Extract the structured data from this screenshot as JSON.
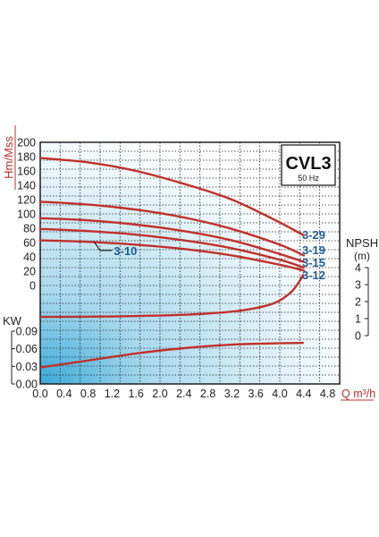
{
  "chart_data": {
    "type": "line",
    "title": "CVL3",
    "subtitle": "50 Hz",
    "xlabel": "Q m³/h",
    "head_axis_label": "Hm/Mss",
    "npsh_axis_label": "NPSH",
    "npsh_unit": "(m)",
    "power_axis_label": "KW",
    "x_ticks": [
      "0.0",
      "0.4",
      "0.8",
      "1.2",
      "1.6",
      "2.0",
      "2.4",
      "2.8",
      "3.2",
      "3.6",
      "4.0",
      "4.4",
      "4.8"
    ],
    "head_ticks": [
      "200",
      "180",
      "160",
      "140",
      "120",
      "100",
      "80",
      "60",
      "40",
      "20",
      "0"
    ],
    "npsh_ticks": [
      "4",
      "3",
      "2",
      "1",
      "0"
    ],
    "power_ticks": [
      "0.09",
      "0.06",
      "0.03",
      "0.00"
    ],
    "xlim": [
      0,
      5.0
    ],
    "head_ylim": [
      0,
      200
    ],
    "npsh_ylim": [
      0,
      4
    ],
    "power_ylim": [
      0,
      0.09
    ],
    "series": [
      {
        "name": "3-29",
        "x": [
          0,
          0.8,
          1.6,
          2.4,
          3.2,
          4.0,
          4.4
        ],
        "y": [
          178,
          172,
          160,
          142,
          120,
          88,
          70
        ]
      },
      {
        "name": "3-19",
        "x": [
          0,
          0.8,
          1.6,
          2.4,
          3.2,
          4.0,
          4.4
        ],
        "y": [
          117,
          113,
          106,
          95,
          79,
          57,
          42
        ]
      },
      {
        "name": "3-15",
        "x": [
          0,
          0.8,
          1.6,
          2.4,
          3.2,
          4.0,
          4.4
        ],
        "y": [
          94,
          91,
          85,
          76,
          63,
          44,
          33
        ]
      },
      {
        "name": "3-12",
        "x": [
          0,
          0.8,
          1.6,
          2.4,
          3.2,
          4.0,
          4.4
        ],
        "y": [
          79,
          76,
          71,
          63,
          52,
          36,
          25
        ]
      },
      {
        "name": "3-10",
        "x": [
          0,
          0.8,
          1.6,
          2.4,
          3.2,
          4.0,
          4.4
        ],
        "y": [
          63,
          61,
          57,
          51,
          42,
          29,
          21
        ]
      }
    ],
    "npsh_curve": {
      "x": [
        0,
        1.0,
        2.0,
        2.8,
        3.4,
        3.9,
        4.2,
        4.4
      ],
      "y": [
        1.1,
        1.12,
        1.18,
        1.3,
        1.5,
        1.9,
        2.6,
        3.6
      ]
    },
    "power_curve": {
      "x": [
        0,
        0.8,
        1.6,
        2.4,
        3.2,
        3.8,
        4.4
      ],
      "y": [
        0.028,
        0.04,
        0.052,
        0.061,
        0.067,
        0.069,
        0.07
      ]
    },
    "grid": true,
    "colors": {
      "curve": "#c0302b",
      "label": "#1f5c94",
      "axis_title": "#c0302b",
      "grid": "#222222"
    }
  }
}
